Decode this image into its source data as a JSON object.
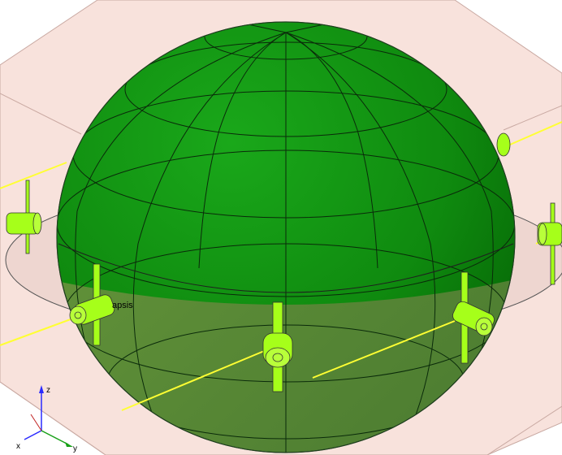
{
  "scene": {
    "background": "#ffffff",
    "ground_plane_color": "#f8e2dc",
    "sphere_color": "#118a11",
    "sphere_lower_color": "#4f8a2c",
    "antenna_color": "#a6ff1a",
    "beam_color": "#ffff33",
    "label_periapsis": "apsis"
  },
  "axes": {
    "z": "z",
    "x": "x",
    "y": "y",
    "x_color": "#2a2aff",
    "y_color": "#18a018",
    "z_color": "#2a2aff"
  }
}
